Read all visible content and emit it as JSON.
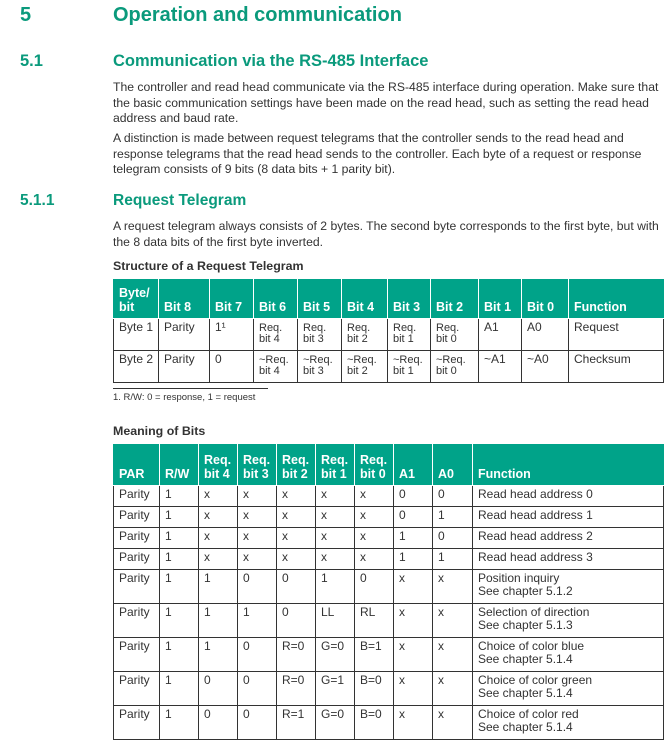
{
  "chapter": {
    "number": "5",
    "title": "Operation and communication"
  },
  "section": {
    "number": "5.1",
    "title": "Communication via the RS-485 Interface",
    "paragraphs": [
      "The controller and read head communicate via the RS-485 interface during operation. Make sure that the basic communication settings have been made on the read head, such as setting the read head address and baud rate.",
      "A distinction is made between request telegrams that the controller sends to the read head and response telegrams that the read head sends to the controller. Each byte of a request or response telegram consists of 9 bits (8 data bits + 1 parity bit)."
    ]
  },
  "subsection": {
    "number": "5.1.1",
    "title": "Request Telegram",
    "paragraph": "A request telegram always consists of 2 bytes. The second byte corresponds to the first byte, but with the 8 data bits of the first byte inverted."
  },
  "table1": {
    "caption": "Structure of a Request Telegram",
    "headers": [
      "Byte/\nbit",
      "Bit 8",
      "Bit 7",
      "Bit 6",
      "Bit 5",
      "Bit 4",
      "Bit 3",
      "Bit 2",
      "Bit 1",
      "Bit 0",
      "Function"
    ],
    "rows": [
      [
        "Byte 1",
        "Parity",
        "1¹",
        "Req.\nbit 4",
        "Req.\nbit 3",
        "Req.\nbit 2",
        "Req.\nbit 1",
        "Req.\nbit 0",
        "A1",
        "A0",
        "Request"
      ],
      [
        "Byte 2",
        "Parity",
        "0",
        "~Req.\nbit 4",
        "~Req.\nbit 3",
        "~Req.\nbit 2",
        "~Req.\nbit 1",
        "~Req.\nbit 0",
        "~A1",
        "~A0",
        "Checksum"
      ]
    ],
    "footnote": "1. R/W: 0 = response, 1 = request"
  },
  "table2": {
    "caption": "Meaning of Bits",
    "headers": [
      "PAR",
      "R/W",
      "Req.\nbit 4",
      "Req.\nbit 3",
      "Req.\nbit 2",
      "Req.\nbit 1",
      "Req.\nbit 0",
      "A1",
      "A0",
      "Function"
    ],
    "rows": [
      [
        "Parity",
        "1",
        "x",
        "x",
        "x",
        "x",
        "x",
        "0",
        "0",
        "Read head address 0"
      ],
      [
        "Parity",
        "1",
        "x",
        "x",
        "x",
        "x",
        "x",
        "0",
        "1",
        "Read head address 1"
      ],
      [
        "Parity",
        "1",
        "x",
        "x",
        "x",
        "x",
        "x",
        "1",
        "0",
        "Read head address 2"
      ],
      [
        "Parity",
        "1",
        "x",
        "x",
        "x",
        "x",
        "x",
        "1",
        "1",
        "Read head address 3"
      ],
      [
        "Parity",
        "1",
        "1",
        "0",
        "0",
        "1",
        "0",
        "x",
        "x",
        "Position inquiry\nSee chapter 5.1.2"
      ],
      [
        "Parity",
        "1",
        "1",
        "1",
        "0",
        "LL",
        "RL",
        "x",
        "x",
        "Selection of direction\nSee chapter 5.1.3"
      ],
      [
        "Parity",
        "1",
        "1",
        "0",
        "R=0",
        "G=0",
        "B=1",
        "x",
        "x",
        "Choice of color blue\nSee chapter 5.1.4"
      ],
      [
        "Parity",
        "1",
        "0",
        "0",
        "R=0",
        "G=1",
        "B=0",
        "x",
        "x",
        "Choice of color green\nSee chapter 5.1.4"
      ],
      [
        "Parity",
        "1",
        "0",
        "0",
        "R=1",
        "G=0",
        "B=0",
        "x",
        "x",
        "Choice of color red\nSee chapter 5.1.4"
      ]
    ]
  },
  "colors": {
    "heading": "#0a9a7c",
    "table_header": "#00a389"
  }
}
